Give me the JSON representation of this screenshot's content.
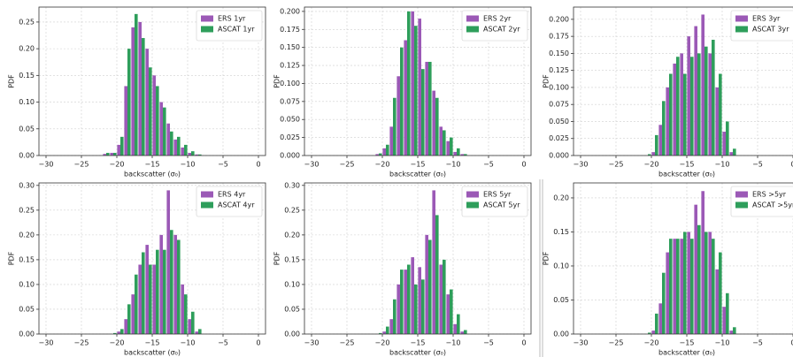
{
  "chart_data": [
    {
      "type": "histogram",
      "x_label": "backscatter (σ₀)",
      "y_label": "PDF",
      "bins": [
        -22,
        -21,
        -20,
        -19,
        -18,
        -17,
        -16,
        -15,
        -14,
        -13,
        -12,
        -11,
        -10,
        -9,
        -8
      ],
      "series": [
        {
          "name": "ERS 1yr",
          "color": "#9b59b6",
          "values": [
            0.003,
            0.005,
            0.02,
            0.13,
            0.24,
            0.25,
            0.2,
            0.15,
            0.1,
            0.06,
            0.03,
            0.015,
            0.005,
            0.002
          ]
        },
        {
          "name": "ASCAT 1yr",
          "color": "#2e9e5b",
          "values": [
            0.005,
            0.005,
            0.035,
            0.2,
            0.265,
            0.22,
            0.165,
            0.13,
            0.09,
            0.045,
            0.035,
            0.02,
            0.008,
            0.002
          ]
        }
      ],
      "xlim": [
        -31,
        1
      ],
      "xticks": [
        {
          "value": -30,
          "label": "−30"
        },
        {
          "value": -25,
          "label": "−25"
        },
        {
          "value": -20,
          "label": "−20"
        },
        {
          "value": -15,
          "label": "−15"
        },
        {
          "value": -10,
          "label": "−10"
        },
        {
          "value": -5,
          "label": "−5"
        },
        0
      ],
      "ylim": [
        0,
        0.278
      ],
      "yticks": [
        {
          "value": 0,
          "label": "0.00"
        },
        {
          "value": 0.05,
          "label": "0.05"
        },
        {
          "value": 0.1,
          "label": "0.10"
        },
        {
          "value": 0.15,
          "label": "0.15"
        },
        {
          "value": 0.2,
          "label": "0.20"
        },
        {
          "value": 0.25,
          "label": "0.25"
        }
      ],
      "grid": true,
      "legend": "upper right"
    },
    {
      "type": "histogram",
      "x_label": "backscatter (σ₀)",
      "y_label": "PDF",
      "bins": [
        -22,
        -21,
        -20,
        -19,
        -18,
        -17,
        -16,
        -15,
        -14,
        -13,
        -12,
        -11,
        -10,
        -9,
        -8
      ],
      "series": [
        {
          "name": "ERS 2yr",
          "color": "#9b59b6",
          "values": [
            0,
            0.002,
            0.01,
            0.04,
            0.11,
            0.16,
            0.2,
            0.19,
            0.13,
            0.09,
            0.04,
            0.02,
            0.005,
            0.002
          ]
        },
        {
          "name": "ASCAT 2yr",
          "color": "#2e9e5b",
          "values": [
            0,
            0.003,
            0.015,
            0.08,
            0.15,
            0.2,
            0.18,
            0.12,
            0.13,
            0.08,
            0.035,
            0.025,
            0.01,
            0.002
          ]
        }
      ],
      "xlim": [
        -31,
        1
      ],
      "xticks": [
        {
          "value": -30,
          "label": "−30"
        },
        {
          "value": -25,
          "label": "−25"
        },
        {
          "value": -20,
          "label": "−20"
        },
        {
          "value": -15,
          "label": "−15"
        },
        {
          "value": -10,
          "label": "−10"
        },
        {
          "value": -5,
          "label": "−5"
        },
        0
      ],
      "ylim": [
        0,
        0.206
      ],
      "yticks": [
        {
          "value": 0,
          "label": "0.000"
        },
        {
          "value": 0.025,
          "label": "0.025"
        },
        {
          "value": 0.05,
          "label": "0.050"
        },
        {
          "value": 0.075,
          "label": "0.075"
        },
        {
          "value": 0.1,
          "label": "0.100"
        },
        {
          "value": 0.125,
          "label": "0.125"
        },
        {
          "value": 0.15,
          "label": "0.150"
        },
        {
          "value": 0.175,
          "label": "0.175"
        },
        {
          "value": 0.2,
          "label": "0.200"
        }
      ],
      "grid": true,
      "legend": "upper right"
    },
    {
      "type": "histogram",
      "x_label": "backscatter (σ₀)",
      "y_label": "PDF",
      "bins": [
        -22,
        -21,
        -20,
        -19,
        -18,
        -17,
        -16,
        -15,
        -14,
        -13,
        -12,
        -11,
        -10,
        -9,
        -8
      ],
      "series": [
        {
          "name": "ERS 3yr",
          "color": "#9b59b6",
          "values": [
            0,
            0,
            0.005,
            0.045,
            0.1,
            0.135,
            0.15,
            0.175,
            0.19,
            0.207,
            0.15,
            0.1,
            0.035,
            0.005
          ]
        },
        {
          "name": "ASCAT 3yr",
          "color": "#2e9e5b",
          "values": [
            0,
            0.002,
            0.03,
            0.08,
            0.12,
            0.145,
            0.12,
            0.145,
            0.15,
            0.16,
            0.17,
            0.12,
            0.05,
            0.01
          ]
        }
      ],
      "xlim": [
        -31,
        1
      ],
      "xticks": [
        {
          "value": -30,
          "label": "−30"
        },
        {
          "value": -25,
          "label": "−25"
        },
        {
          "value": -20,
          "label": "−20"
        },
        {
          "value": -15,
          "label": "−15"
        },
        {
          "value": -10,
          "label": "−10"
        },
        {
          "value": -5,
          "label": "−5"
        },
        0
      ],
      "ylim": [
        0,
        0.218
      ],
      "yticks": [
        {
          "value": 0,
          "label": "0.000"
        },
        {
          "value": 0.025,
          "label": "0.025"
        },
        {
          "value": 0.05,
          "label": "0.050"
        },
        {
          "value": 0.075,
          "label": "0.075"
        },
        {
          "value": 0.1,
          "label": "0.100"
        },
        {
          "value": 0.125,
          "label": "0.125"
        },
        {
          "value": 0.15,
          "label": "0.150"
        },
        {
          "value": 0.175,
          "label": "0.175"
        },
        {
          "value": 0.2,
          "label": "0.200"
        }
      ],
      "grid": true,
      "legend": "upper right"
    },
    {
      "type": "histogram",
      "x_label": "backscatter (σ₀)",
      "y_label": "PDF",
      "bins": [
        -22,
        -21,
        -20,
        -19,
        -18,
        -17,
        -16,
        -15,
        -14,
        -13,
        -12,
        -11,
        -10,
        -9,
        -8
      ],
      "series": [
        {
          "name": "ERS 4yr",
          "color": "#9b59b6",
          "values": [
            0,
            0,
            0.005,
            0.03,
            0.08,
            0.14,
            0.18,
            0.14,
            0.2,
            0.29,
            0.2,
            0.1,
            0.03,
            0.005
          ]
        },
        {
          "name": "ASCAT 4yr",
          "color": "#2e9e5b",
          "values": [
            0,
            0.002,
            0.01,
            0.06,
            0.12,
            0.165,
            0.14,
            0.17,
            0.17,
            0.21,
            0.19,
            0.08,
            0.045,
            0.01
          ]
        }
      ],
      "xlim": [
        -31,
        1
      ],
      "xticks": [
        {
          "value": -30,
          "label": "−30"
        },
        {
          "value": -25,
          "label": "−25"
        },
        {
          "value": -20,
          "label": "−20"
        },
        {
          "value": -15,
          "label": "−15"
        },
        {
          "value": -10,
          "label": "−10"
        },
        {
          "value": -5,
          "label": "−5"
        },
        0
      ],
      "ylim": [
        0,
        0.305
      ],
      "yticks": [
        {
          "value": 0,
          "label": "0.00"
        },
        {
          "value": 0.05,
          "label": "0.05"
        },
        {
          "value": 0.1,
          "label": "0.10"
        },
        {
          "value": 0.15,
          "label": "0.15"
        },
        {
          "value": 0.2,
          "label": "0.20"
        },
        {
          "value": 0.25,
          "label": "0.25"
        },
        {
          "value": 0.3,
          "label": "0.30"
        }
      ],
      "grid": true,
      "legend": "upper right"
    },
    {
      "type": "histogram",
      "x_label": "backscatter (σ₀)",
      "y_label": "PDF",
      "bins": [
        -22,
        -21,
        -20,
        -19,
        -18,
        -17,
        -16,
        -15,
        -14,
        -13,
        -12,
        -11,
        -10,
        -9,
        -8
      ],
      "series": [
        {
          "name": "ERS 5yr",
          "color": "#9b59b6",
          "values": [
            0,
            0,
            0.005,
            0.03,
            0.1,
            0.13,
            0.155,
            0.135,
            0.2,
            0.29,
            0.14,
            0.08,
            0.02,
            0.005
          ]
        },
        {
          "name": "ASCAT 5yr",
          "color": "#2e9e5b",
          "values": [
            0,
            0.002,
            0.015,
            0.07,
            0.13,
            0.14,
            0.1,
            0.11,
            0.19,
            0.24,
            0.15,
            0.09,
            0.04,
            0.008
          ]
        }
      ],
      "xlim": [
        -31,
        1
      ],
      "xticks": [
        {
          "value": -30,
          "label": "−30"
        },
        {
          "value": -25,
          "label": "−25"
        },
        {
          "value": -20,
          "label": "−20"
        },
        {
          "value": -15,
          "label": "−15"
        },
        {
          "value": -10,
          "label": "−10"
        },
        {
          "value": -5,
          "label": "−5"
        },
        0
      ],
      "ylim": [
        0,
        0.305
      ],
      "yticks": [
        {
          "value": 0,
          "label": "0.00"
        },
        {
          "value": 0.05,
          "label": "0.05"
        },
        {
          "value": 0.1,
          "label": "0.10"
        },
        {
          "value": 0.15,
          "label": "0.15"
        },
        {
          "value": 0.2,
          "label": "0.20"
        },
        {
          "value": 0.25,
          "label": "0.25"
        },
        {
          "value": 0.3,
          "label": "0.30"
        }
      ],
      "grid": true,
      "legend": "upper right"
    },
    {
      "type": "histogram",
      "x_label": "backscatter (σ₀)",
      "y_label": "PDF",
      "bins": [
        -22,
        -21,
        -20,
        -19,
        -18,
        -17,
        -16,
        -15,
        -14,
        -13,
        -12,
        -11,
        -10,
        -9,
        -8
      ],
      "series": [
        {
          "name": "ERS >5yr",
          "color": "#9b59b6",
          "values": [
            0,
            0,
            0.005,
            0.045,
            0.12,
            0.14,
            0.14,
            0.15,
            0.19,
            0.21,
            0.15,
            0.095,
            0.04,
            0.005
          ]
        },
        {
          "name": "ASCAT >5yr",
          "color": "#2e9e5b",
          "values": [
            0,
            0.002,
            0.03,
            0.09,
            0.14,
            0.14,
            0.15,
            0.14,
            0.16,
            0.15,
            0.14,
            0.12,
            0.06,
            0.01
          ]
        }
      ],
      "xlim": [
        -31,
        1
      ],
      "xticks": [
        {
          "value": -30,
          "label": "−30"
        },
        {
          "value": -25,
          "label": "−25"
        },
        {
          "value": -20,
          "label": "−20"
        },
        {
          "value": -15,
          "label": "−15"
        },
        {
          "value": -10,
          "label": "−10"
        },
        {
          "value": -5,
          "label": "−5"
        },
        0
      ],
      "ylim": [
        0,
        0.222
      ],
      "yticks": [
        {
          "value": 0,
          "label": "0.00"
        },
        {
          "value": 0.05,
          "label": "0.05"
        },
        {
          "value": 0.1,
          "label": "0.10"
        },
        {
          "value": 0.15,
          "label": "0.15"
        },
        {
          "value": 0.2,
          "label": "0.20"
        }
      ],
      "grid": true,
      "legend": "upper right"
    }
  ]
}
